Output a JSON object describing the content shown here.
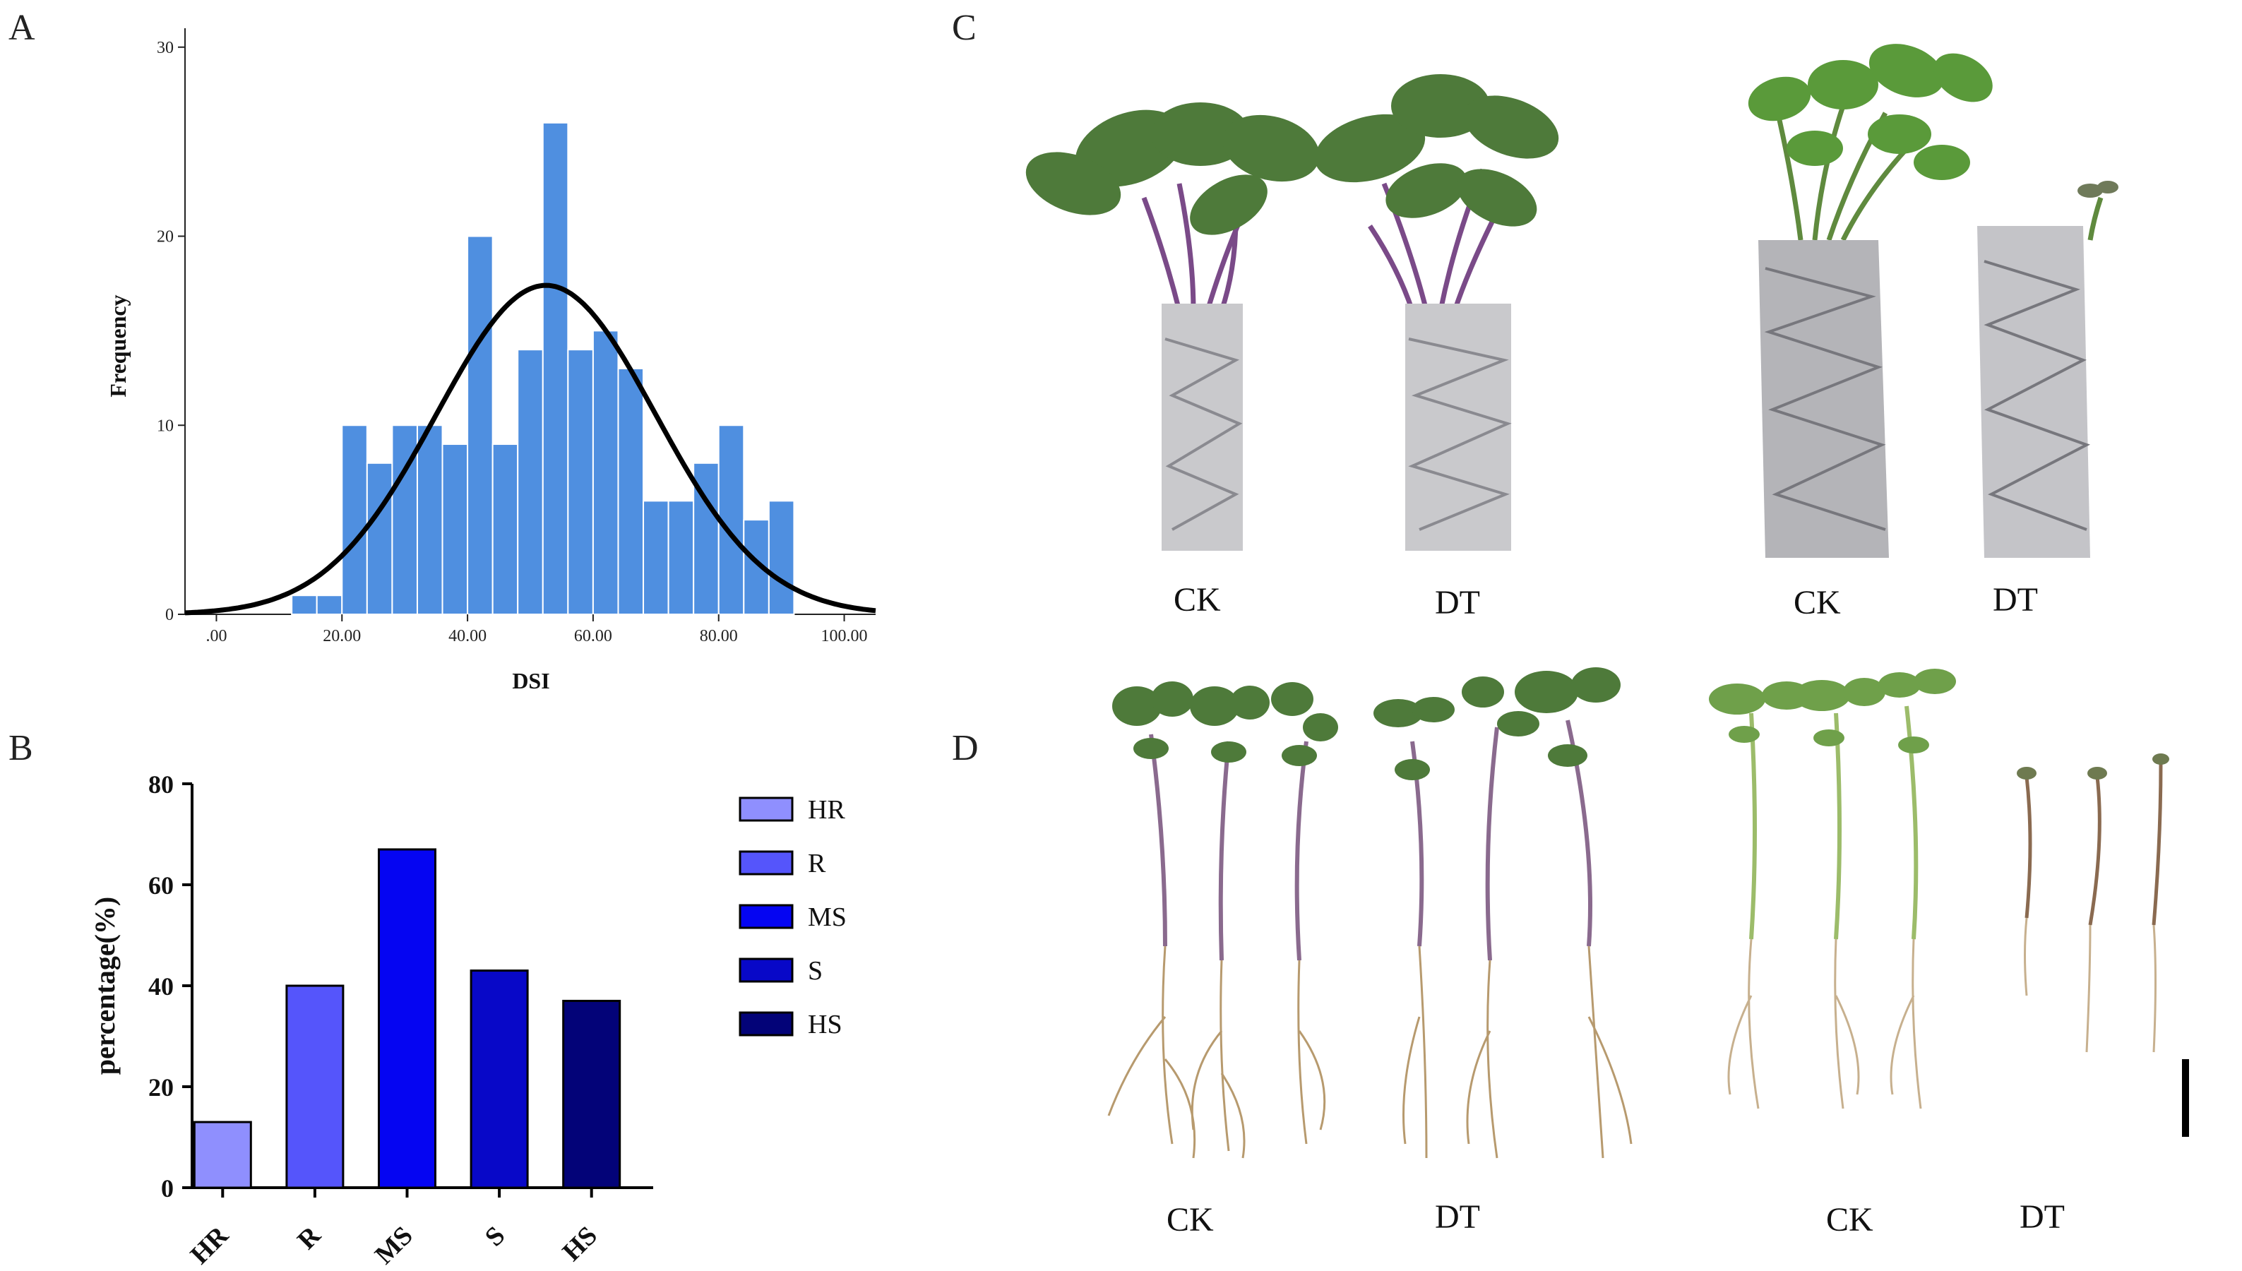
{
  "panels": {
    "a": "A",
    "b": "B",
    "c": "C",
    "d": "D"
  },
  "chart_data": [
    {
      "type": "bar",
      "panel": "A",
      "xlabel": "DSI",
      "ylabel": "Frequency",
      "xlim": [
        -5,
        105
      ],
      "ylim": [
        0,
        31
      ],
      "xticks": [
        ".00",
        "20.00",
        "40.00",
        "60.00",
        "80.00",
        "100.00"
      ],
      "xtick_values": [
        0,
        20,
        40,
        60,
        80,
        100
      ],
      "yticks": [
        "0",
        "10",
        "20",
        "30"
      ],
      "ytick_values": [
        0,
        10,
        20,
        30
      ],
      "bin_width": 4,
      "bin_starts": [
        12,
        16,
        20,
        24,
        28,
        32,
        36,
        40,
        44,
        48,
        52,
        56,
        60,
        64,
        68,
        72,
        76,
        80,
        84,
        88
      ],
      "values": [
        1,
        1,
        10,
        8,
        10,
        10,
        9,
        20,
        9,
        14,
        26,
        14,
        15,
        13,
        6,
        6,
        8,
        10,
        5,
        6
      ],
      "normal_curve": {
        "mean": 52.5,
        "sd": 17.5,
        "peak": 17.4
      },
      "bar_color": "#4f8fe0"
    },
    {
      "type": "bar",
      "panel": "B",
      "ylabel": "percentage(%)",
      "ylim": [
        0,
        80
      ],
      "yticks": [
        "0",
        "20",
        "40",
        "60",
        "80"
      ],
      "ytick_values": [
        0,
        20,
        40,
        60,
        80
      ],
      "categories": [
        "HR",
        "R",
        "MS",
        "S",
        "HS"
      ],
      "values": [
        13,
        40,
        67,
        43,
        37
      ],
      "colors": [
        "#8f8ffe",
        "#5555fb",
        "#0505f2",
        "#0808c8",
        "#030378"
      ],
      "legend": [
        "HR",
        "R",
        "MS",
        "S",
        "HS"
      ],
      "legend_position": "right"
    }
  ],
  "photos": {
    "c_left": {
      "labels": [
        "CK",
        "DT"
      ]
    },
    "c_right": {
      "labels": [
        "CK",
        "DT"
      ]
    },
    "d_left": {
      "labels": [
        "CK",
        "DT"
      ]
    },
    "d_right": {
      "labels": [
        "CK",
        "DT"
      ]
    }
  },
  "colors": {
    "leaf": "#4e7a3a",
    "leaf_light": "#6a9a4e",
    "stem": "#7a4a88",
    "foil": "#c9c9cc",
    "root": "#b79a6e"
  }
}
